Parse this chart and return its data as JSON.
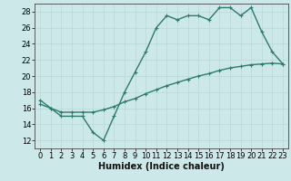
{
  "line1_x": [
    0,
    1,
    2,
    3,
    4,
    5,
    6,
    7,
    8,
    9,
    10,
    11,
    12,
    13,
    14,
    15,
    16,
    17,
    18,
    19,
    20,
    21,
    22,
    23
  ],
  "line1_y": [
    17,
    16,
    15,
    15,
    15,
    13,
    12,
    15,
    18,
    20.5,
    23,
    26,
    27.5,
    27,
    27.5,
    27.5,
    27,
    28.5,
    28.5,
    27.5,
    28.5,
    25.5,
    23,
    21.5
  ],
  "line2_x": [
    0,
    1,
    2,
    3,
    4,
    5,
    6,
    7,
    8,
    9,
    10,
    11,
    12,
    13,
    14,
    15,
    16,
    17,
    18,
    19,
    20,
    21,
    22,
    23
  ],
  "line2_y": [
    16.5,
    16.0,
    15.5,
    15.5,
    15.5,
    15.5,
    15.8,
    16.2,
    16.8,
    17.2,
    17.8,
    18.3,
    18.8,
    19.2,
    19.6,
    20.0,
    20.3,
    20.7,
    21.0,
    21.2,
    21.4,
    21.5,
    21.6,
    21.5
  ],
  "color": "#2d7a6e",
  "bg_color": "#cde8e8",
  "grid_color": "#b8d8d8",
  "xlabel": "Humidex (Indice chaleur)",
  "xlim": [
    -0.5,
    23.5
  ],
  "ylim": [
    11,
    29
  ],
  "xticks": [
    0,
    1,
    2,
    3,
    4,
    5,
    6,
    7,
    8,
    9,
    10,
    11,
    12,
    13,
    14,
    15,
    16,
    17,
    18,
    19,
    20,
    21,
    22,
    23
  ],
  "yticks": [
    12,
    14,
    16,
    18,
    20,
    22,
    24,
    26,
    28
  ],
  "xlabel_fontsize": 7,
  "tick_fontsize": 6,
  "marker_size": 3,
  "line_width": 1.0
}
